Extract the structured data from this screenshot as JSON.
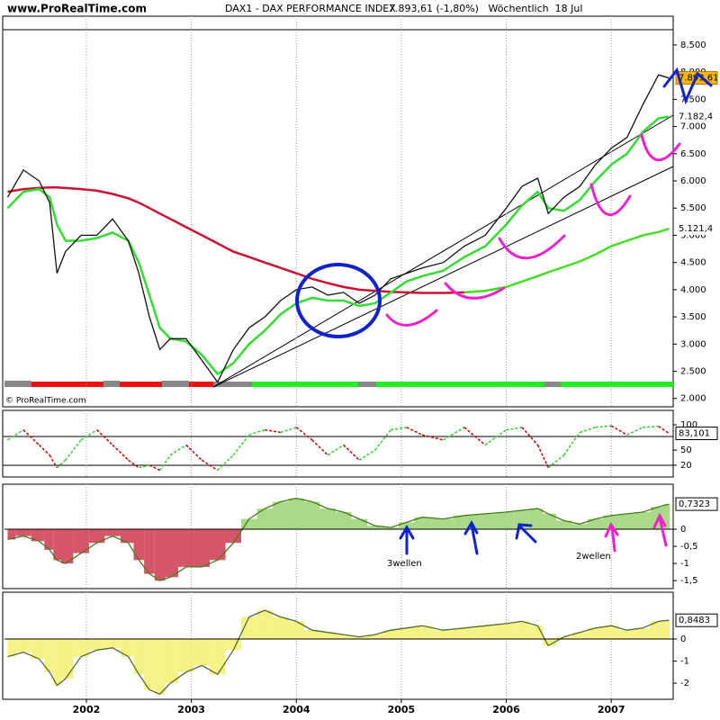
{
  "chart_data": [
    {
      "type": "line",
      "source": "www.ProRealTime.com",
      "title": "DAX1 - DAX PERFORMANCE INDEX",
      "subtitle": "7.893,61 (-1,80%)   Wöchentlich  18 Jul",
      "watermark": "© ProRealTime.com",
      "x": [
        2001.25,
        2001.4,
        2001.55,
        2001.65,
        2001.72,
        2001.8,
        2001.95,
        2002.1,
        2002.25,
        2002.4,
        2002.5,
        2002.6,
        2002.7,
        2002.8,
        2002.95,
        2003.1,
        2003.25,
        2003.4,
        2003.55,
        2003.7,
        2003.85,
        2004.0,
        2004.15,
        2004.3,
        2004.45,
        2004.6,
        2004.75,
        2004.9,
        2005.05,
        2005.2,
        2005.4,
        2005.6,
        2005.8,
        2006.0,
        2006.15,
        2006.3,
        2006.4,
        2006.55,
        2006.7,
        2006.85,
        2007.0,
        2007.15,
        2007.3,
        2007.45,
        2007.55
      ],
      "series": [
        {
          "color": "#cc1133",
          "values": [
            5800,
            5850,
            5870,
            5880,
            5880,
            5870,
            5850,
            5820,
            5760,
            5680,
            5600,
            5500,
            5400,
            5300,
            5150,
            5000,
            4850,
            4700,
            4600,
            4500,
            4400,
            4300,
            4200,
            4120,
            4050,
            4000,
            3980,
            3960,
            3950,
            3940,
            3940,
            3950,
            null,
            null,
            null,
            null,
            null,
            null,
            null,
            null,
            null,
            null,
            null,
            null,
            null
          ]
        },
        {
          "color": "#44dd22",
          "label_color": "#22aa22",
          "last_label": "5.121,4",
          "values": [
            null,
            null,
            null,
            null,
            null,
            null,
            null,
            null,
            null,
            null,
            null,
            null,
            null,
            null,
            null,
            null,
            null,
            null,
            null,
            null,
            null,
            null,
            null,
            null,
            null,
            null,
            null,
            null,
            null,
            null,
            null,
            3950,
            3980,
            4050,
            4150,
            4250,
            4320,
            4420,
            4520,
            4650,
            4800,
            4900,
            5000,
            5060,
            5121.4
          ]
        },
        {
          "color": "#33dd33",
          "label_color": "#22aa22",
          "last_label": "7.182,4",
          "values": [
            5500,
            5800,
            5850,
            5700,
            5200,
            4900,
            4900,
            4950,
            5050,
            4900,
            4500,
            3900,
            3300,
            3100,
            3050,
            2800,
            2450,
            2650,
            3000,
            3250,
            3550,
            3750,
            3850,
            3800,
            3800,
            3700,
            3750,
            3950,
            4150,
            4250,
            4350,
            4600,
            4800,
            5200,
            5550,
            5800,
            5500,
            5450,
            5650,
            6000,
            6300,
            6500,
            6900,
            7150,
            7182.4
          ]
        },
        {
          "color": "#111111",
          "label_box": "#f5b800",
          "label_border": "#c07000",
          "label_color": "#000000",
          "last_label": "7.893,61",
          "values": [
            5700,
            6200,
            6000,
            5600,
            4300,
            4700,
            5000,
            5000,
            5300,
            4900,
            4300,
            3500,
            2900,
            3100,
            3100,
            2700,
            2300,
            2900,
            3300,
            3500,
            3800,
            4000,
            4050,
            3900,
            3950,
            3750,
            3900,
            4200,
            4300,
            4400,
            4500,
            4800,
            5000,
            5500,
            5900,
            6050,
            5400,
            5700,
            5900,
            6300,
            6600,
            6800,
            7400,
            7950,
            7893.61
          ]
        }
      ],
      "xlim": [
        2001.22,
        2007.59
      ],
      "xticks": [
        2002,
        2003,
        2004,
        2005,
        2006,
        2007
      ],
      "grid_x": true,
      "ylim": [
        1880,
        8780
      ],
      "yticks": [
        {
          "value": 2000,
          "label": "2.000"
        },
        {
          "value": 2500,
          "label": "2.500"
        },
        {
          "value": 3000,
          "label": "3.000"
        },
        {
          "value": 3500,
          "label": "3.500"
        },
        {
          "value": 4000,
          "label": "4.000"
        },
        {
          "value": 4500,
          "label": "4.500"
        },
        {
          "value": 5000,
          "label": "5.000"
        },
        {
          "value": 5500,
          "label": "5.500"
        },
        {
          "value": 6000,
          "label": "6.000"
        },
        {
          "value": 6500,
          "label": "6.500"
        },
        {
          "value": 7000,
          "label": "7.000"
        },
        {
          "value": 7500,
          "label": "7.500"
        },
        {
          "value": 8000,
          "label": "8.000"
        },
        {
          "value": 8500,
          "label": "8.500"
        }
      ]
    },
    {
      "type": "line",
      "x": [
        2001.25,
        2001.4,
        2001.55,
        2001.65,
        2001.72,
        2001.8,
        2001.95,
        2002.1,
        2002.25,
        2002.4,
        2002.5,
        2002.6,
        2002.7,
        2002.8,
        2002.95,
        2003.1,
        2003.25,
        2003.4,
        2003.55,
        2003.7,
        2003.85,
        2004.0,
        2004.15,
        2004.3,
        2004.45,
        2004.6,
        2004.75,
        2004.9,
        2005.05,
        2005.2,
        2005.4,
        2005.6,
        2005.8,
        2006.0,
        2006.15,
        2006.3,
        2006.4,
        2006.55,
        2006.7,
        2006.85,
        2007.0,
        2007.15,
        2007.3,
        2007.45,
        2007.55
      ],
      "series": [
        {
          "color": "#cc0000",
          "rising_color": "#33cc33",
          "dashed": true,
          "label_box": "#ffffff",
          "label_border": "#000000",
          "label_color": "#cc0000",
          "last_label": "83,101",
          "values": [
            70,
            90,
            60,
            40,
            15,
            30,
            70,
            90,
            60,
            30,
            15,
            20,
            10,
            40,
            60,
            30,
            10,
            40,
            80,
            90,
            85,
            95,
            70,
            40,
            60,
            30,
            50,
            90,
            95,
            80,
            70,
            95,
            60,
            90,
            95,
            60,
            15,
            40,
            85,
            95,
            98,
            80,
            95,
            97,
            83.101
          ]
        }
      ],
      "xlim": [
        2001.22,
        2007.59
      ],
      "xticks": [
        2002,
        2003,
        2004,
        2005,
        2006,
        2007
      ],
      "grid_x": true,
      "ylim": [
        2,
        125
      ],
      "yticks": [
        20,
        50,
        100
      ]
    },
    {
      "type": "bar",
      "x": [
        2001.25,
        2001.4,
        2001.55,
        2001.65,
        2001.72,
        2001.8,
        2001.95,
        2002.1,
        2002.25,
        2002.4,
        2002.5,
        2002.6,
        2002.7,
        2002.8,
        2002.95,
        2003.1,
        2003.25,
        2003.4,
        2003.55,
        2003.7,
        2003.85,
        2004.0,
        2004.15,
        2004.3,
        2004.45,
        2004.6,
        2004.75,
        2004.9,
        2005.05,
        2005.2,
        2005.4,
        2005.6,
        2005.8,
        2006.0,
        2006.15,
        2006.3,
        2006.4,
        2006.55,
        2006.7,
        2006.85,
        2007.0,
        2007.15,
        2007.3,
        2007.45,
        2007.55
      ],
      "values": [
        -0.3,
        -0.2,
        -0.35,
        -0.6,
        -0.9,
        -1.0,
        -0.7,
        -0.4,
        -0.2,
        -0.4,
        -0.9,
        -1.3,
        -1.5,
        -1.4,
        -1.1,
        -1.1,
        -0.9,
        -0.4,
        0.3,
        0.6,
        0.8,
        0.9,
        0.8,
        0.6,
        0.5,
        0.3,
        0.1,
        0.05,
        0.2,
        0.35,
        0.3,
        0.4,
        0.45,
        0.5,
        0.55,
        0.6,
        0.45,
        0.25,
        0.15,
        0.3,
        0.4,
        0.45,
        0.5,
        0.65,
        0.7323
      ],
      "positive_color": "#9ed67a",
      "negative_color": "#d04458",
      "outline_color": "#4a7a1e",
      "last_label": "0,7323",
      "label_color": "#22aa22",
      "annotations": [
        {
          "text": "3wellen",
          "color": "#1133cc"
        },
        {
          "text": "2wellen",
          "color": "#ee22cc"
        }
      ],
      "xlim": [
        2001.22,
        2007.59
      ],
      "xticks": [
        2002,
        2003,
        2004,
        2005,
        2006,
        2007
      ],
      "grid_x": true,
      "ylim": [
        -1.68,
        1.26
      ],
      "yticks": [
        0,
        {
          "value": -0.5,
          "label": "-0,5"
        },
        -1,
        {
          "value": -1.5,
          "label": "-1,5"
        }
      ]
    },
    {
      "type": "bar",
      "x": [
        2001.25,
        2001.4,
        2001.55,
        2001.65,
        2001.72,
        2001.8,
        2001.95,
        2002.1,
        2002.25,
        2002.4,
        2002.5,
        2002.6,
        2002.7,
        2002.8,
        2002.95,
        2003.1,
        2003.25,
        2003.4,
        2003.55,
        2003.7,
        2003.85,
        2004.0,
        2004.15,
        2004.3,
        2004.45,
        2004.6,
        2004.75,
        2004.9,
        2005.05,
        2005.2,
        2005.4,
        2005.6,
        2005.8,
        2006.0,
        2006.15,
        2006.3,
        2006.4,
        2006.55,
        2006.7,
        2006.85,
        2007.0,
        2007.15,
        2007.3,
        2007.45,
        2007.55
      ],
      "values": [
        -0.8,
        -0.6,
        -0.9,
        -1.5,
        -2.1,
        -1.8,
        -0.8,
        -0.5,
        -0.4,
        -0.8,
        -1.6,
        -2.3,
        -2.5,
        -2.0,
        -1.5,
        -1.2,
        -1.6,
        -0.5,
        1.0,
        1.3,
        1.0,
        0.8,
        0.4,
        0.3,
        0.2,
        0.1,
        0.2,
        0.4,
        0.5,
        0.6,
        0.4,
        0.5,
        0.6,
        0.7,
        0.8,
        0.6,
        -0.3,
        0.1,
        0.3,
        0.5,
        0.6,
        0.4,
        0.5,
        0.8,
        0.8483
      ],
      "positive_color": "#f4f27a",
      "negative_color": "#f4f27a",
      "outline_color": "#556b2f",
      "last_label": "0,8483",
      "label_color": "#22aa22",
      "xlim": [
        2001.22,
        2007.59
      ],
      "xticks": [
        2002,
        2003,
        2004,
        2005,
        2006,
        2007
      ],
      "grid_x": true,
      "ylim": [
        -2.65,
        2.04
      ],
      "yticks": [
        0,
        -1,
        -2
      ]
    }
  ]
}
